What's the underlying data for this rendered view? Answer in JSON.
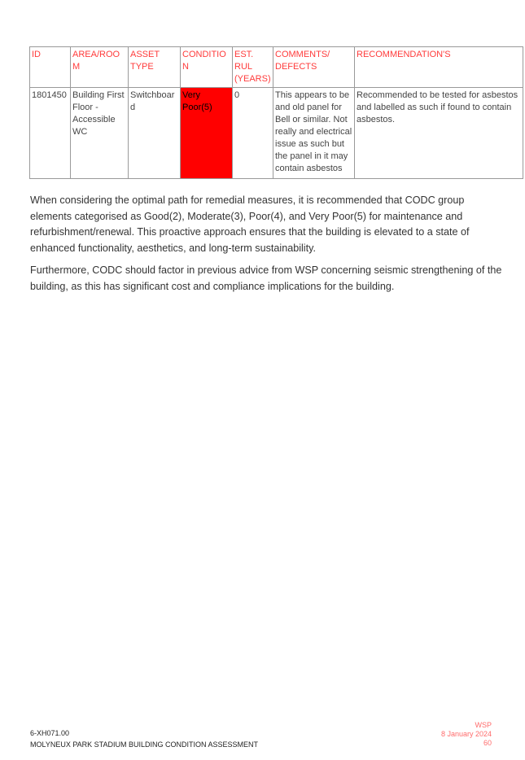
{
  "table": {
    "headers": [
      "ID",
      "AREA/ROOM",
      "ASSET TYPE",
      "CONDITION",
      "EST. RUL (YEARS)",
      "COMMENTS/ DEFECTS",
      "RECOMMENDATION'S"
    ],
    "rows": [
      [
        "1801450",
        "Building First Floor - Accessible WC",
        "Switchboard",
        "Very Poor(5)",
        "0",
        "This appears to be and old panel for Bell or similar. Not really and electrical issue as such but the panel in it may contain asbestos",
        "Recommended to be tested for asbestos and labelled as such if found to contain asbestos."
      ]
    ],
    "condition_color": "#ff0000",
    "header_color": "#ff3b3b"
  },
  "paragraphs": [
    "When considering the optimal path for remedial measures, it is recommended that CODC group elements categorised as Good(2), Moderate(3), Poor(4), and Very Poor(5)  for maintenance and refurbishment/renewal. This proactive approach ensures that the building is elevated to a state of enhanced functionality, aesthetics, and long-term sustainability.",
    "Furthermore, CODC should  factor in previous advice from WSP concerning seismic strengthening of the building, as this has significant cost and compliance implications for the building."
  ],
  "footer": {
    "code": "6-XH071.00",
    "title": "MOLYNEUX PARK STADIUM BUILDING CONDITION ASSESSMENT",
    "company": "WSP",
    "date": "8 January 2024",
    "page": "60"
  }
}
